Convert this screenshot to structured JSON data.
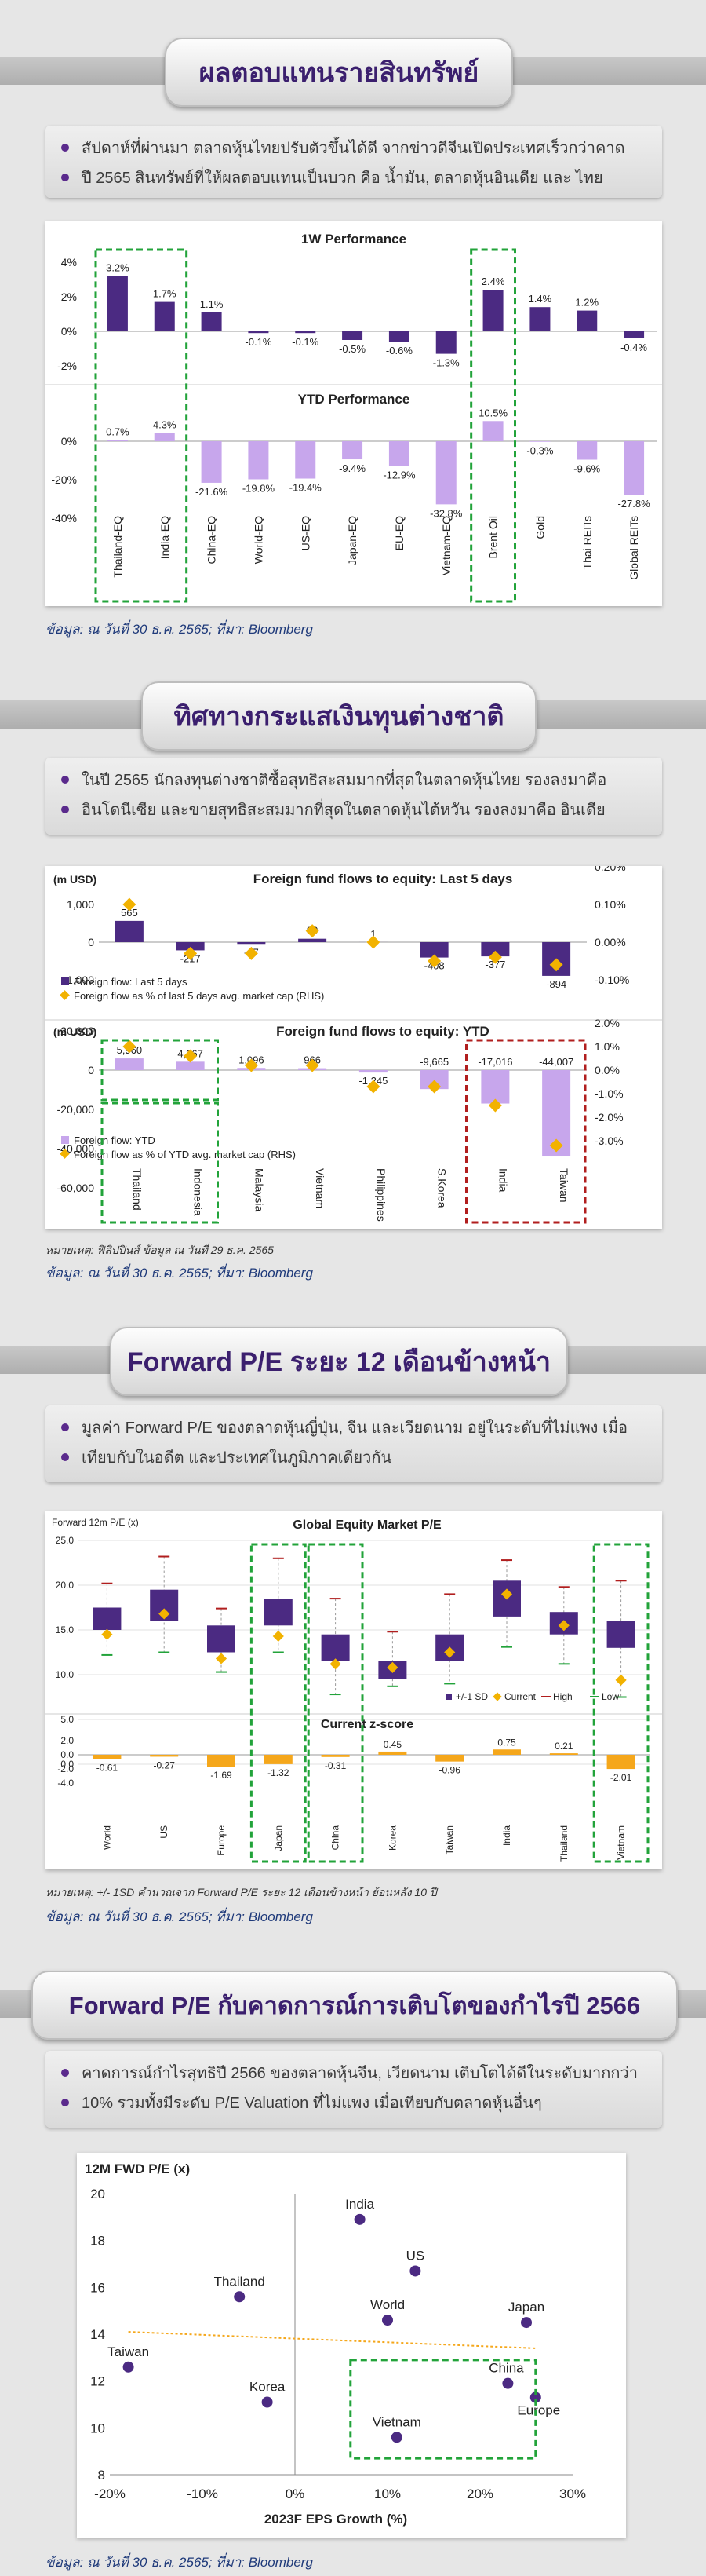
{
  "sections": [
    {
      "title": "ผลตอบแทนรายสินทรัพย์",
      "bullets": [
        "สัปดาห์ที่ผ่านมา ตลาดหุ้นไทยปรับตัวขึ้นได้ดี จากข่าวดีจีนเปิดประเทศเร็วกว่าคาด",
        "ปี 2565 สินทรัพย์ที่ให้ผลตอบแทนเป็นบวก คือ น้ำมัน, ตลาดหุ้นอินเดีย และ ไทย"
      ],
      "source": "ข้อมูล: ณ วันที่ 30 ธ.ค. 2565; ที่มา: Bloomberg"
    },
    {
      "title": "ทิศทางกระแสเงินทุนต่างชาติ",
      "bullets": [
        "ในปี 2565 นักลงทุนต่างชาติซื้อสุทธิสะสมมากที่สุดในตลาดหุ้นไทย รองลงมาคือ",
        "อินโดนีเซีย และขายสุทธิสะสมมากที่สุดในตลาดหุ้นไต้หวัน รองลงมาคือ อินเดีย"
      ],
      "note": "หมายเหตุ: ฟิลิปปินส์ ข้อมูล ณ วันที่ 29 ธ.ค. 2565",
      "source": "ข้อมูล: ณ วันที่ 30 ธ.ค. 2565; ที่มา: Bloomberg"
    },
    {
      "title": "Forward P/E ระยะ 12 เดือนข้างหน้า",
      "bullets": [
        "มูลค่า Forward P/E ของตลาดหุ้นญี่ปุ่น, จีน และเวียดนาม อยู่ในระดับที่ไม่แพง เมื่อ",
        "เทียบกับในอดีต และประเทศในภูมิภาคเดียวกัน"
      ],
      "note": "หมายเหตุ: +/- 1SD คำนวณจาก Forward P/E ระยะ 12 เดือนข้างหน้า ย้อนหลัง 10 ปี",
      "source": "ข้อมูล: ณ วันที่ 30 ธ.ค. 2565; ที่มา: Bloomberg"
    },
    {
      "title": "Forward P/E กับคาดการณ์การเติบโตของกำไรปี 2566",
      "bullets": [
        "คาดการณ์กำไรสุทธิปี 2566 ของตลาดหุ้นจีน, เวียดนาม เติบโตได้ดีในระดับมากกว่า",
        "10% รวมทั้งมีระดับ P/E Valuation ที่ไม่แพง เมื่อเทียบกับตลาดหุ้นอื่นๆ"
      ],
      "source": "ข้อมูล: ณ วันที่ 30 ธ.ค. 2565; ที่มา: Bloomberg"
    }
  ],
  "colors": {
    "purple": "#4b2a82",
    "lavender": "#c7a6ec",
    "orange": "#f5a71b",
    "gold": "#f2b200",
    "green": "#22a33a",
    "red": "#b11e1e"
  },
  "chart_data": [
    {
      "type": "bar",
      "title": "1W Performance",
      "categories": [
        "Thailand-EQ",
        "India-EQ",
        "China-EQ",
        "World-EQ",
        "US-EQ",
        "Japan-EQ",
        "EU-EQ",
        "Vietnam-EQ",
        "Brent Oil",
        "Gold",
        "Thai REITs",
        "Global REITs"
      ],
      "values": [
        3.2,
        1.7,
        1.1,
        -0.1,
        -0.1,
        -0.5,
        -0.6,
        -1.3,
        2.4,
        1.4,
        1.2,
        -0.4
      ],
      "value_labels": [
        "3.2%",
        "1.7%",
        "1.1%",
        "-0.1%",
        "-0.1%",
        "-0.5%",
        "-0.6%",
        "-1.3%",
        "2.4%",
        "1.4%",
        "1.2%",
        "-0.4%"
      ],
      "ylim": [
        -2,
        4
      ],
      "yticks": [
        "4%",
        "2%",
        "0%",
        "-2%"
      ],
      "color": "purple",
      "highlight": [
        "Thailand-EQ",
        "India-EQ",
        "Brent Oil"
      ]
    },
    {
      "type": "bar",
      "title": "YTD Performance",
      "categories": [
        "Thailand-EQ",
        "India-EQ",
        "China-EQ",
        "World-EQ",
        "US-EQ",
        "Japan-EQ",
        "EU-EQ",
        "Vietnam-EQ",
        "Brent Oil",
        "Gold",
        "Thai REITs",
        "Global REITs"
      ],
      "values": [
        0.7,
        4.3,
        -21.6,
        -19.8,
        -19.4,
        -9.4,
        -12.9,
        -32.8,
        10.5,
        -0.3,
        -9.6,
        -27.8
      ],
      "value_labels": [
        "0.7%",
        "4.3%",
        "-21.6%",
        "-19.8%",
        "-19.4%",
        "-9.4%",
        "-12.9%",
        "-32.8%",
        "10.5%",
        "-0.3%",
        "-9.6%",
        "-27.8%"
      ],
      "ylim": [
        -40,
        0
      ],
      "yticks": [
        "0%",
        "-20%",
        "-40%"
      ],
      "color": "lavender"
    },
    {
      "type": "bar",
      "title": "Foreign fund flows to equity: Last 5 days",
      "ylabel": "(m USD)",
      "categories": [
        "Thailand",
        "Indonesia",
        "Malaysia",
        "Vietnam",
        "Philippines",
        "S.Korea",
        "India",
        "Taiwan"
      ],
      "series": [
        {
          "name": "Foreign flow: Last 5 days",
          "values": [
            565,
            -217,
            -47,
            90,
            1,
            -408,
            -377,
            -894
          ]
        },
        {
          "name": "Foreign flow as % of last 5 days avg. market cap (RHS)",
          "values": [
            0.1,
            -0.03,
            -0.03,
            0.03,
            0.0,
            -0.05,
            -0.04,
            -0.06
          ]
        }
      ],
      "value_labels": [
        "565",
        "-217",
        "-47",
        "90",
        "1",
        "-408",
        "-377",
        "-894"
      ],
      "ylim": [
        -1000,
        1000
      ],
      "yticks": [
        "1,000",
        "0",
        "-1,000"
      ],
      "y2lim": [
        -0.1,
        0.2
      ],
      "y2ticks": [
        "0.20%",
        "0.10%",
        "0.00%",
        "-0.10%"
      ]
    },
    {
      "type": "bar",
      "title": "Foreign fund flows to equity: YTD",
      "ylabel": "(m USD)",
      "categories": [
        "Thailand",
        "Indonesia",
        "Malaysia",
        "Vietnam",
        "Philippines",
        "S.Korea",
        "India",
        "Taiwan"
      ],
      "series": [
        {
          "name": "Foreign flow: YTD",
          "values": [
            5960,
            4267,
            1096,
            966,
            -1245,
            -9665,
            -17016,
            -44007
          ]
        },
        {
          "name": "Foreign flow as % of YTD avg. market cap (RHS)",
          "values": [
            1.0,
            0.6,
            0.2,
            0.2,
            -0.7,
            -0.7,
            -1.5,
            -3.2
          ]
        }
      ],
      "value_labels": [
        "5,960",
        "4,267",
        "1,096",
        "966",
        "-1,245",
        "-9,665",
        "-17,016",
        "-44,007"
      ],
      "ylim": [
        -60000,
        20000
      ],
      "yticks": [
        "20,000",
        "0",
        "-20,000",
        "-40,000",
        "-60,000"
      ],
      "y2lim": [
        -3,
        2
      ],
      "y2ticks": [
        "2.0%",
        "1.0%",
        "0.0%",
        "-1.0%",
        "-2.0%",
        "-3.0%"
      ],
      "highlight_green": [
        "Thailand",
        "Indonesia"
      ],
      "highlight_red": [
        "India",
        "Taiwan"
      ]
    },
    {
      "type": "box",
      "title": "Global Equity Market P/E",
      "ylabel": "Forward 12m P/E (x)",
      "categories": [
        "World",
        "US",
        "Europe",
        "Japan",
        "China",
        "Korea",
        "Taiwan",
        "India",
        "Thailand",
        "Vietnam"
      ],
      "sd_low": [
        15.0,
        16.0,
        12.5,
        15.5,
        11.5,
        9.5,
        11.5,
        16.5,
        14.5,
        13.0
      ],
      "sd_high": [
        17.5,
        19.5,
        15.5,
        18.5,
        14.5,
        11.5,
        14.5,
        20.5,
        17.0,
        16.0
      ],
      "current": [
        14.5,
        16.8,
        11.8,
        14.3,
        11.2,
        10.8,
        12.5,
        19.0,
        15.5,
        9.4
      ],
      "high": [
        20.2,
        23.2,
        17.4,
        23.0,
        18.5,
        14.8,
        19.0,
        22.8,
        19.8,
        20.5
      ],
      "low": [
        12.2,
        12.5,
        10.3,
        12.5,
        7.8,
        8.7,
        9.0,
        13.1,
        11.2,
        7.5
      ],
      "ylim": [
        0,
        25
      ],
      "yticks": [
        "25.0",
        "20.0",
        "15.0",
        "10.0",
        "5.0",
        "0.0"
      ],
      "legend": [
        "+/-1 SD",
        "Current",
        "High",
        "Low"
      ],
      "highlight": [
        "Japan",
        "China",
        "Vietnam"
      ]
    },
    {
      "type": "bar",
      "title": "Current z-score",
      "categories": [
        "World",
        "US",
        "Europe",
        "Japan",
        "China",
        "Korea",
        "Taiwan",
        "India",
        "Thailand",
        "Vietnam"
      ],
      "values": [
        -0.61,
        -0.27,
        -1.69,
        -1.32,
        -0.31,
        0.45,
        -0.96,
        0.75,
        0.21,
        -2.01
      ],
      "value_labels": [
        "-0.61",
        "-0.27",
        "-1.69",
        "-1.32",
        "-0.31",
        "0.45",
        "-0.96",
        "0.75",
        "0.21",
        "-2.01"
      ],
      "ylim": [
        -4,
        2
      ],
      "yticks": [
        "2.0",
        "0.0",
        "-2.0",
        "-4.0"
      ],
      "color": "orange"
    },
    {
      "type": "scatter",
      "ylabel": "12M FWD P/E (x)",
      "xlabel": "2023F EPS Growth (%)",
      "points": [
        {
          "label": "India",
          "x": 7,
          "y": 18.9
        },
        {
          "label": "US",
          "x": 13,
          "y": 16.7
        },
        {
          "label": "Thailand",
          "x": -6,
          "y": 15.6
        },
        {
          "label": "World",
          "x": 10,
          "y": 14.6
        },
        {
          "label": "Japan",
          "x": 25,
          "y": 14.5
        },
        {
          "label": "Taiwan",
          "x": -18,
          "y": 12.6
        },
        {
          "label": "Korea",
          "x": -3,
          "y": 11.1
        },
        {
          "label": "China",
          "x": 23,
          "y": 11.9
        },
        {
          "label": "Europe",
          "x": 26,
          "y": 11.3
        },
        {
          "label": "Vietnam",
          "x": 11,
          "y": 9.6
        }
      ],
      "xlim": [
        -20,
        30
      ],
      "ylim": [
        8,
        20
      ],
      "xticks": [
        "-20%",
        "-10%",
        "0%",
        "10%",
        "20%",
        "30%"
      ],
      "yticks": [
        "20",
        "18",
        "16",
        "14",
        "12",
        "10",
        "8"
      ],
      "trendline": true,
      "highlight": [
        "China",
        "Europe",
        "Vietnam"
      ]
    }
  ]
}
